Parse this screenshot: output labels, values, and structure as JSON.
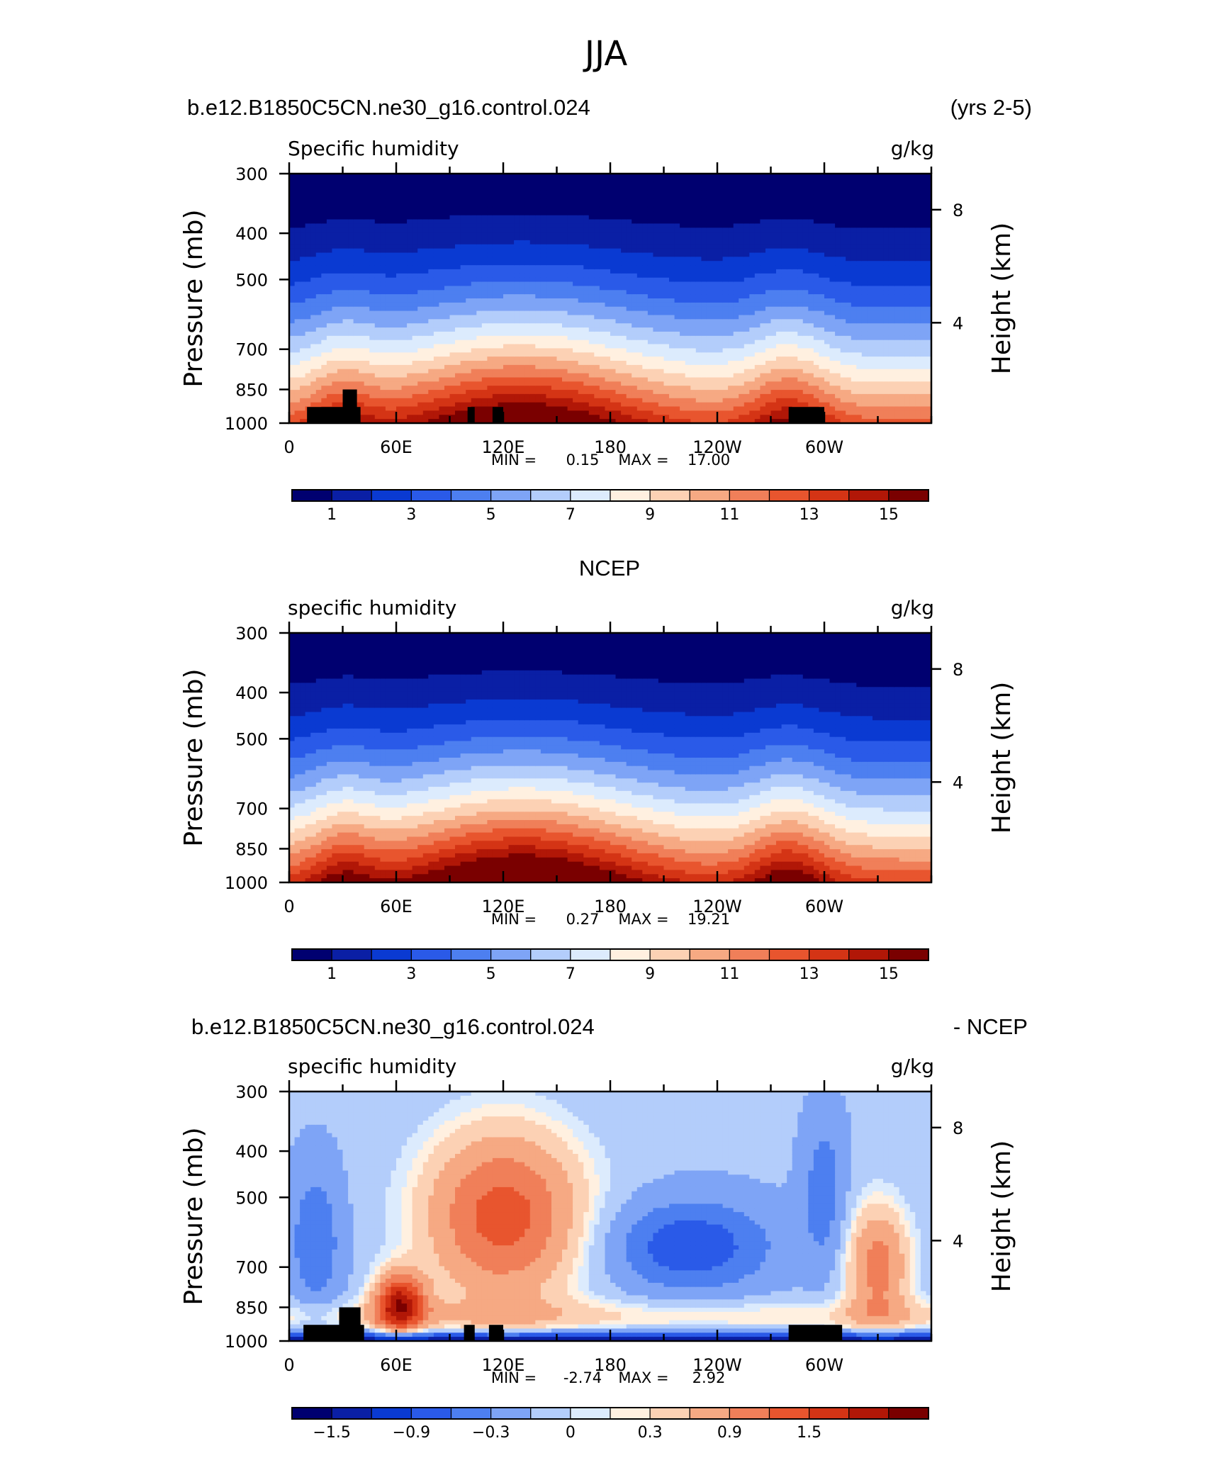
{
  "figure": {
    "title": "JJA",
    "case_name": "b.e12.B1850C5CN.ne30_g16.control.024",
    "years": "(yrs 2-5)",
    "obs_name": "NCEP",
    "diff_suffix": "- NCEP"
  },
  "colors": {
    "land_mask": "#000000",
    "diff_palette": [
      "#000070",
      "#0a1fa5",
      "#0a3ad2",
      "#2a5ae8",
      "#4d7ff0",
      "#7ea4f6",
      "#b3cdfb",
      "#dcebfd",
      "#fff0e0",
      "#fcd1b4",
      "#f6a983",
      "#f07f59",
      "#e8552e",
      "#d43415",
      "#b11707",
      "#7a0000"
    ],
    "abs_palette": [
      "#000070",
      "#0a1fa5",
      "#0a3ad2",
      "#2a5ae8",
      "#4d7ff0",
      "#7ea4f6",
      "#b3cdfb",
      "#dcebfd",
      "#fff0e0",
      "#fcd1b4",
      "#f6a983",
      "#f07f59",
      "#e8552e",
      "#d43415",
      "#b11707",
      "#7a0000"
    ]
  },
  "chart_data": [
    {
      "type": "heatmap",
      "title": "b.e12.B1850C5CN.ne30_g16.control.024",
      "subtitle": "(yrs 2-5)",
      "variable": "Specific humidity",
      "units": "g/kg",
      "xlabel": "",
      "ylabel": "Pressure (mb)",
      "ylabel_right": "Height (km)",
      "x_ticks": [
        "0",
        "60E",
        "120E",
        "180",
        "120W",
        "60W"
      ],
      "y_ticks": [
        "300",
        "400",
        "500",
        "700",
        "850",
        "1000"
      ],
      "y_ticks_right": [
        "8",
        "4"
      ],
      "y_scale": "log",
      "ylim": [
        1000,
        300
      ],
      "min_max_label": {
        "min_label": "MIN =",
        "min_value": "0.15",
        "max_label": "MAX =",
        "max_value": "17.00"
      },
      "min": 0.15,
      "max": 17.0,
      "colorbar_labels": [
        "1",
        "3",
        "5",
        "7",
        "9",
        "11",
        "13",
        "15"
      ],
      "levels": [
        0,
        1,
        2,
        3,
        4,
        5,
        6,
        7,
        8,
        9,
        10,
        11,
        12,
        13,
        14,
        15,
        16
      ],
      "land_mask": [
        [
          10,
          40,
          925
        ],
        [
          30,
          38,
          850
        ],
        [
          100,
          104,
          925
        ],
        [
          114,
          120,
          925
        ],
        [
          280,
          300,
          925
        ]
      ]
    },
    {
      "type": "heatmap",
      "title": "NCEP",
      "variable": "specific humidity",
      "units": "g/kg",
      "xlabel": "",
      "ylabel": "Pressure (mb)",
      "ylabel_right": "Height (km)",
      "x_ticks": [
        "0",
        "60E",
        "120E",
        "180",
        "120W",
        "60W"
      ],
      "y_ticks": [
        "300",
        "400",
        "500",
        "700",
        "850",
        "1000"
      ],
      "y_ticks_right": [
        "8",
        "4"
      ],
      "y_scale": "log",
      "ylim": [
        1000,
        300
      ],
      "min_max_label": {
        "min_label": "MIN =",
        "min_value": "0.27",
        "max_label": "MAX =",
        "max_value": "19.21"
      },
      "min": 0.27,
      "max": 19.21,
      "colorbar_labels": [
        "1",
        "3",
        "5",
        "7",
        "9",
        "11",
        "13",
        "15"
      ],
      "levels": [
        0,
        1,
        2,
        3,
        4,
        5,
        6,
        7,
        8,
        9,
        10,
        11,
        12,
        13,
        14,
        15,
        16
      ],
      "land_mask": []
    },
    {
      "type": "heatmap",
      "title": "b.e12.B1850C5CN.ne30_g16.control.024",
      "subtitle": "- NCEP",
      "variable": "specific humidity",
      "units": "g/kg",
      "xlabel": "",
      "ylabel": "Pressure (mb)",
      "ylabel_right": "Height (km)",
      "x_ticks": [
        "0",
        "60E",
        "120E",
        "180",
        "120W",
        "60W"
      ],
      "y_ticks": [
        "300",
        "400",
        "500",
        "700",
        "850",
        "1000"
      ],
      "y_ticks_right": [
        "8",
        "4"
      ],
      "y_scale": "log",
      "ylim": [
        1000,
        300
      ],
      "min_max_label": {
        "min_label": "MIN =",
        "min_value": "-2.74",
        "max_label": "MAX =",
        "max_value": "2.92"
      },
      "min": -2.74,
      "max": 2.92,
      "colorbar_labels": [
        "−1.5",
        "−0.9",
        "−0.3",
        "0",
        "0.3",
        "0.9",
        "1.5"
      ],
      "levels": [
        -2.4,
        -1.8,
        -1.5,
        -1.2,
        -0.9,
        -0.6,
        -0.3,
        -0.1,
        0,
        0.1,
        0.3,
        0.6,
        0.9,
        1.2,
        1.5,
        1.8,
        2.4
      ],
      "land_mask": [
        [
          8,
          42,
          925
        ],
        [
          28,
          40,
          850
        ],
        [
          98,
          104,
          925
        ],
        [
          112,
          120,
          925
        ],
        [
          280,
          310,
          925
        ]
      ]
    }
  ]
}
